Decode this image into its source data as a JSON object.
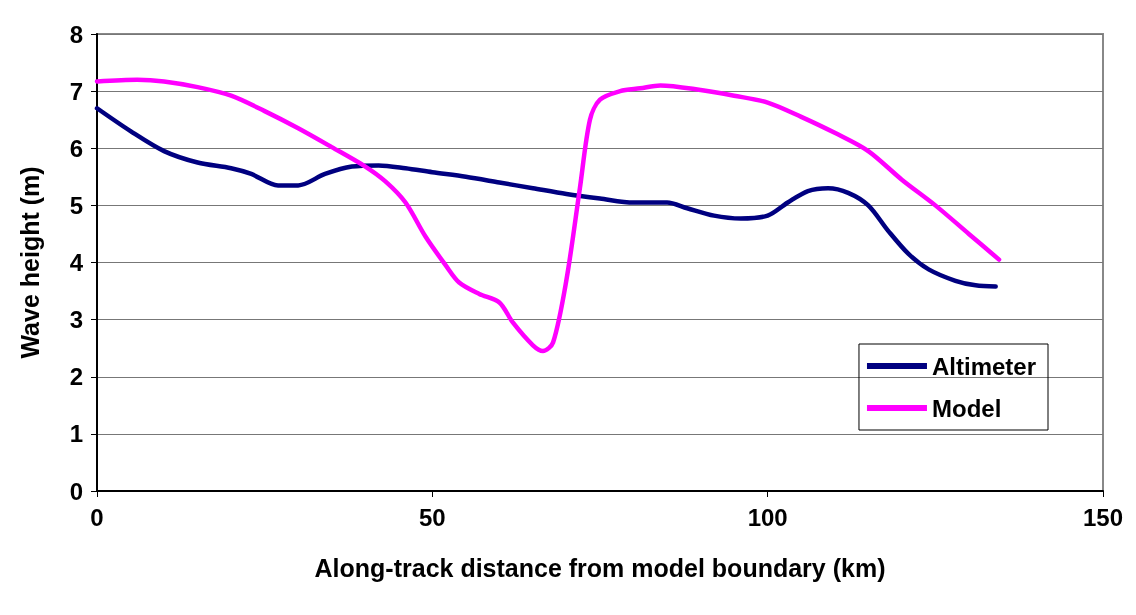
{
  "chart_data": {
    "type": "line",
    "xlabel": "Along-track distance from model boundary (km)",
    "ylabel": "Wave height (m)",
    "xlim": [
      0,
      150
    ],
    "xticks": [
      0,
      50,
      100,
      150
    ],
    "ylim": [
      0,
      8
    ],
    "yticks": [
      0,
      1,
      2,
      3,
      4,
      5,
      6,
      7,
      8
    ],
    "grid": "y",
    "legend": "bottom right",
    "marker": "none",
    "line_style": "solid",
    "series": [
      {
        "name": "Altimeter",
        "color": "#000080",
        "x": [
          0,
          5,
          10,
          15,
          20,
          23,
          27,
          30,
          34,
          38,
          42,
          46,
          50,
          55,
          60,
          65,
          70,
          75,
          80,
          85,
          88,
          92,
          96,
          100,
          103,
          106,
          109,
          112,
          115,
          118,
          121,
          124,
          128,
          131,
          134
        ],
        "values": [
          6.7,
          6.3,
          5.95,
          5.75,
          5.65,
          5.55,
          5.35,
          5.35,
          5.55,
          5.68,
          5.7,
          5.65,
          5.58,
          5.5,
          5.4,
          5.3,
          5.2,
          5.12,
          5.05,
          5.05,
          4.95,
          4.82,
          4.77,
          4.82,
          5.05,
          5.25,
          5.3,
          5.22,
          5.0,
          4.55,
          4.15,
          3.88,
          3.68,
          3.6,
          3.58
        ]
      },
      {
        "name": "Model",
        "color": "#ff00ff",
        "x": [
          0,
          6,
          10,
          15,
          20,
          25,
          30,
          35,
          40,
          43,
          46,
          49,
          52,
          54,
          57,
          60,
          62,
          65,
          66.5,
          68,
          70,
          72,
          73.5,
          75,
          78,
          81,
          84,
          90,
          95,
          100,
          105,
          110,
          115,
          120,
          125,
          130,
          134.5
        ],
        "values": [
          7.17,
          7.2,
          7.17,
          7.07,
          6.92,
          6.65,
          6.35,
          6.02,
          5.68,
          5.42,
          5.05,
          4.45,
          3.95,
          3.65,
          3.45,
          3.3,
          2.95,
          2.55,
          2.45,
          2.6,
          3.7,
          5.3,
          6.5,
          6.85,
          7.0,
          7.05,
          7.1,
          7.02,
          6.92,
          6.8,
          6.55,
          6.27,
          5.95,
          5.45,
          5.0,
          4.5,
          4.05
        ]
      }
    ]
  }
}
